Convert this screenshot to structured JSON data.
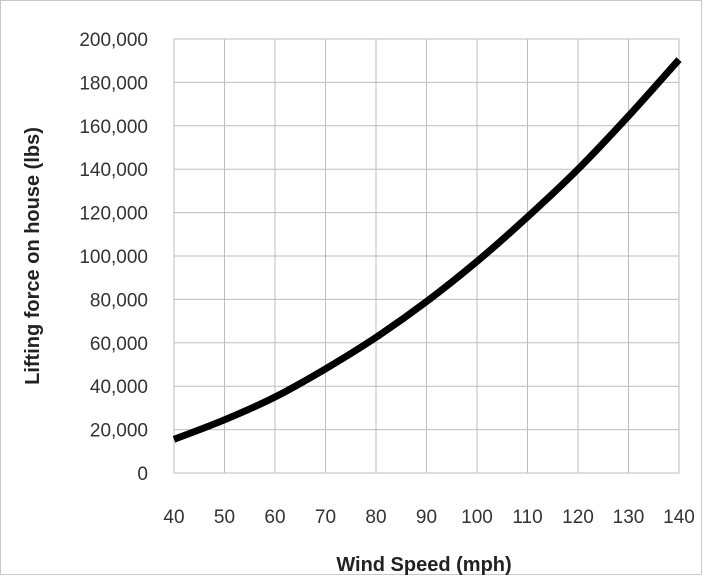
{
  "chart_data": {
    "type": "line",
    "title": "",
    "xlabel": "Wind Speed (mph)",
    "ylabel": "Lifting force on house (lbs)",
    "xlim": [
      40,
      140
    ],
    "ylim": [
      0,
      200000
    ],
    "grid": true,
    "x_ticks": [
      40,
      50,
      60,
      70,
      80,
      90,
      100,
      110,
      120,
      130,
      140
    ],
    "x_tick_labels": [
      "40",
      "50",
      "60",
      "70",
      "80",
      "90",
      "100",
      "110",
      "120",
      "130",
      "140"
    ],
    "y_ticks": [
      0,
      20000,
      40000,
      60000,
      80000,
      100000,
      120000,
      140000,
      160000,
      180000,
      200000
    ],
    "y_tick_labels": [
      "0",
      "20,000",
      "40,000",
      "60,000",
      "80,000",
      "100,000",
      "120,000",
      "140,000",
      "160,000",
      "180,000",
      "200,000"
    ],
    "series": [
      {
        "color": "#000000",
        "x": [
          40,
          50,
          60,
          70,
          80,
          90,
          100,
          110,
          120,
          130,
          140
        ],
        "y": [
          15500,
          24500,
          35000,
          48000,
          62500,
          79000,
          97500,
          118000,
          140000,
          164500,
          190500
        ]
      }
    ]
  }
}
